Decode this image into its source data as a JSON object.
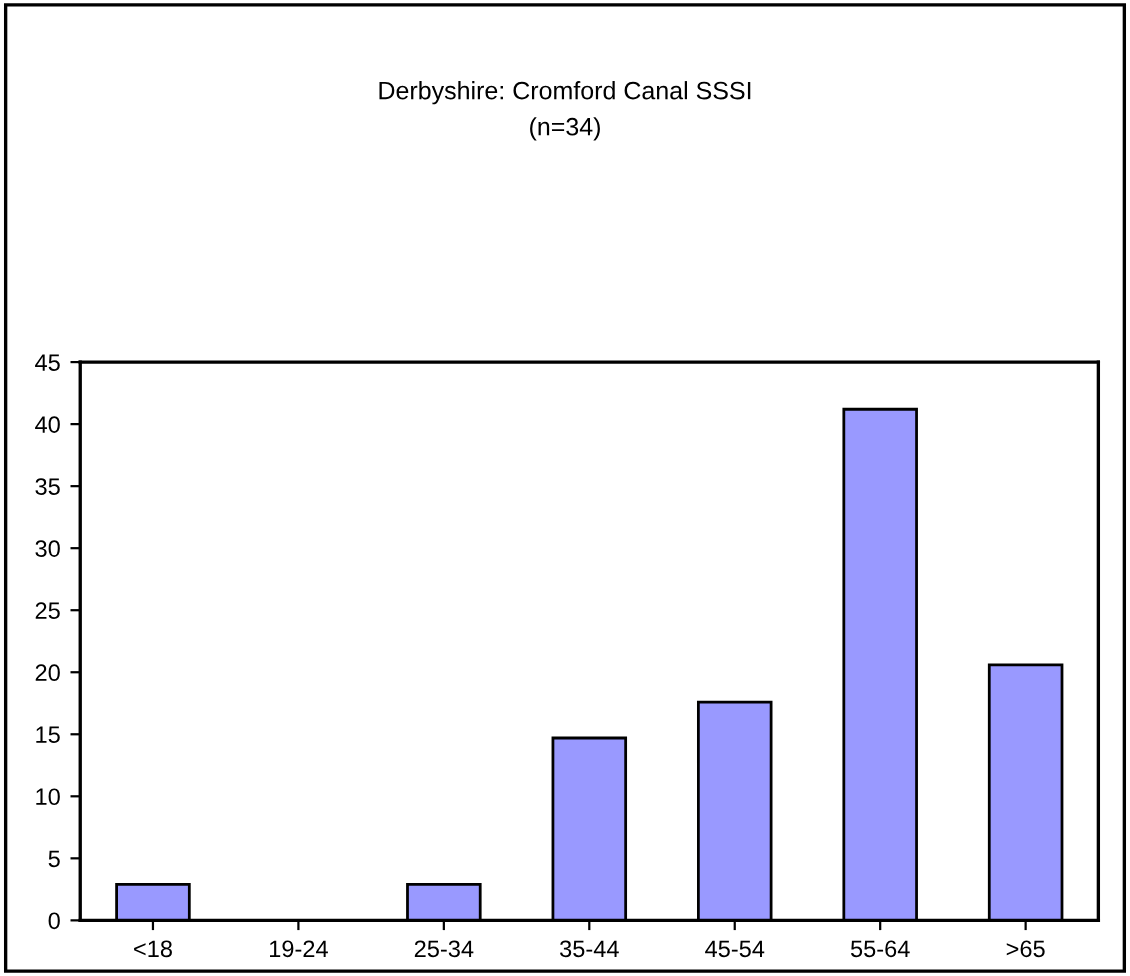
{
  "chart_data": {
    "type": "bar",
    "title": "Derbyshire: Cromford Canal SSSI",
    "subtitle": "(n=34)",
    "categories": [
      "<18",
      "19-24",
      "25-34",
      "35-44",
      "45-54",
      "55-64",
      ">65"
    ],
    "values": [
      2.9,
      0,
      2.9,
      14.7,
      17.6,
      41.2,
      20.6
    ],
    "color": "#9999ff",
    "ylim": [
      0,
      45
    ],
    "yticks": [
      0,
      5,
      10,
      15,
      20,
      25,
      30,
      35,
      40,
      45
    ],
    "grid": false,
    "legend": false
  }
}
